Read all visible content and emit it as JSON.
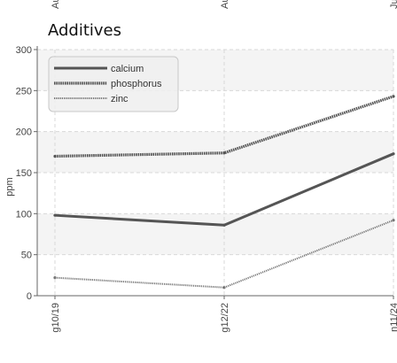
{
  "chart_data": {
    "type": "line",
    "title": "Additives",
    "ylabel": "ppm",
    "xlabel": "",
    "ylim": [
      0,
      300
    ],
    "yticks": [
      0,
      50,
      100,
      150,
      200,
      250,
      300
    ],
    "categories": [
      "g10/19",
      "g12/22",
      "n11/24"
    ],
    "top_cut_labels": [
      "Au",
      "Au",
      "Ju"
    ],
    "grid": true,
    "legend_position": "top-left",
    "series": [
      {
        "name": "calcium",
        "values": [
          98,
          86,
          173
        ],
        "color": "#555555",
        "style": "solid"
      },
      {
        "name": "phosphorus",
        "values": [
          170,
          174,
          243
        ],
        "color": "#555555",
        "style": "dense-dotted"
      },
      {
        "name": "zinc",
        "values": [
          22,
          10,
          92
        ],
        "color": "#777777",
        "style": "fine-dotted"
      }
    ]
  }
}
